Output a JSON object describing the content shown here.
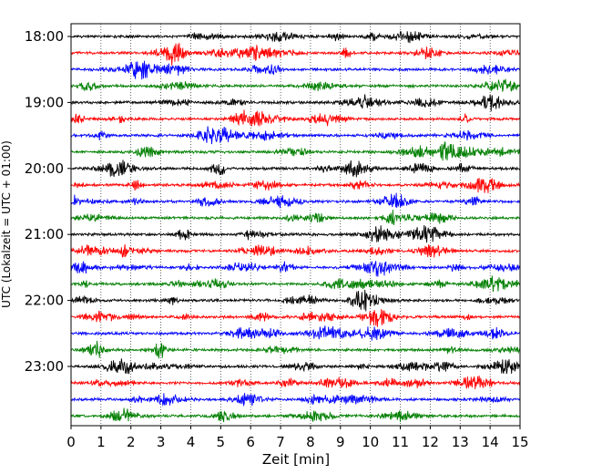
{
  "chart_data": {
    "type": "line",
    "title": "",
    "xlabel": "Zeit  [min]",
    "ylabel": "UTC (Lokalzeit = UTC + 01:00)",
    "xlim": [
      0,
      15
    ],
    "x_ticks": [
      "0",
      "1",
      "2",
      "3",
      "4",
      "5",
      "6",
      "7",
      "8",
      "9",
      "10",
      "11",
      "12",
      "13",
      "14",
      "15"
    ],
    "y_ticks": [
      {
        "label": "18:00",
        "row": 0
      },
      {
        "label": "19:00",
        "row": 4
      },
      {
        "label": "20:00",
        "row": 8
      },
      {
        "label": "21:00",
        "row": 12
      },
      {
        "label": "22:00",
        "row": 16
      },
      {
        "label": "23:00",
        "row": 20
      }
    ],
    "grid": "vertical-dotted",
    "trace_colors": [
      "#000000",
      "#ff0000",
      "#0000ff",
      "#007f00"
    ],
    "series": [
      {
        "start": "18:00"
      },
      {
        "start": "18:15"
      },
      {
        "start": "18:30"
      },
      {
        "start": "18:45"
      },
      {
        "start": "19:00"
      },
      {
        "start": "19:15"
      },
      {
        "start": "19:30"
      },
      {
        "start": "19:45"
      },
      {
        "start": "20:00"
      },
      {
        "start": "20:15"
      },
      {
        "start": "20:30"
      },
      {
        "start": "20:45"
      },
      {
        "start": "21:00"
      },
      {
        "start": "21:15"
      },
      {
        "start": "21:30"
      },
      {
        "start": "21:45"
      },
      {
        "start": "22:00"
      },
      {
        "start": "22:15"
      },
      {
        "start": "22:30"
      },
      {
        "start": "22:45"
      },
      {
        "start": "23:00"
      },
      {
        "start": "23:15"
      },
      {
        "start": "23:30"
      },
      {
        "start": "23:45"
      }
    ]
  }
}
